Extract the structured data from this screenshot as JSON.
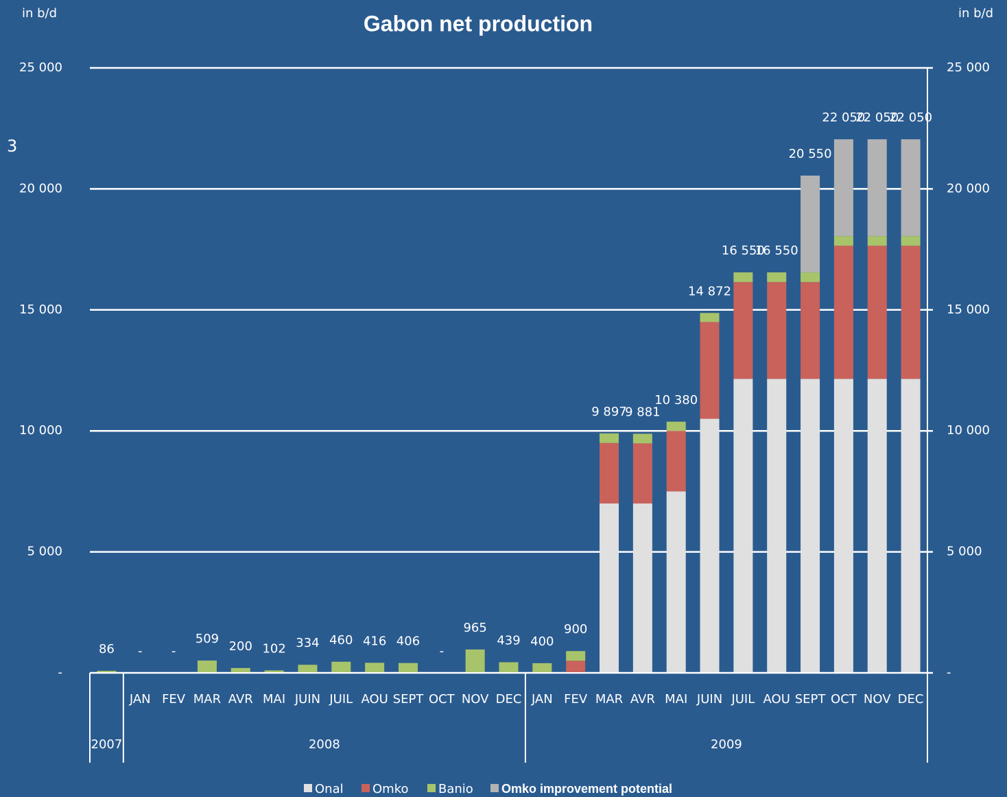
{
  "page_number": "3",
  "chart_data": {
    "type": "stacked_bar",
    "title": "Gabon net production",
    "y_label": "in b/d",
    "y2_label": "in b/d",
    "categories": [
      null,
      "JAN",
      "FEV",
      "MAR",
      "AVR",
      "MAI",
      "JUIN",
      "JUIL",
      "AOU",
      "SEPT",
      "OCT",
      "NOV",
      "DEC",
      "JAN",
      "FEV",
      "MAR",
      "AVR",
      "MAI",
      "JUIN",
      "JUIL",
      "AOU",
      "SEPT",
      "OCT",
      "NOV",
      "DEC"
    ],
    "years": [
      "2007",
      "2008",
      "2009"
    ],
    "series": [
      {
        "name": "Onal",
        "color": "#e0e0e0",
        "values": [
          0,
          0,
          0,
          0,
          0,
          0,
          0,
          0,
          0,
          0,
          0,
          0,
          0,
          0,
          0,
          7000,
          7000,
          7500,
          10500,
          12150,
          12150,
          12150,
          12150,
          12150,
          12150
        ]
      },
      {
        "name": "Omko",
        "color": "#c9625a",
        "values": [
          0,
          0,
          0,
          0,
          0,
          0,
          0,
          0,
          0,
          0,
          0,
          0,
          0,
          0,
          500,
          2500,
          2484,
          2500,
          4000,
          4000,
          4000,
          4000,
          5500,
          5500,
          5500
        ]
      },
      {
        "name": "Banio",
        "color": "#a8c46a",
        "values": [
          86,
          0,
          0,
          509,
          200,
          102,
          334,
          460,
          416,
          406,
          0,
          965,
          439,
          400,
          400,
          397,
          397,
          380,
          372,
          400,
          400,
          400,
          400,
          400,
          400
        ]
      },
      {
        "name": "Omko improvement potential",
        "color": "#b3b3b3",
        "values": [
          0,
          0,
          0,
          0,
          0,
          0,
          0,
          0,
          0,
          0,
          0,
          0,
          0,
          0,
          0,
          0,
          0,
          0,
          0,
          0,
          0,
          4000,
          4000,
          4000,
          4000
        ]
      }
    ],
    "totals": [
      86,
      0,
      0,
      509,
      200,
      102,
      334,
      460,
      416,
      406,
      0,
      965,
      439,
      400,
      900,
      9897,
      9881,
      10380,
      14872,
      16550,
      16550,
      20550,
      22050,
      22050,
      22050
    ],
    "total_labels": [
      "86",
      "-",
      "-",
      "509",
      "200",
      "102",
      "334",
      "460",
      "416",
      "406",
      "-",
      "965",
      "439",
      "400",
      "900",
      "9 897",
      "9 881",
      "10 380",
      "14 872",
      "16 550",
      "16 550",
      "20 550",
      "22 050",
      "22 050",
      "22 050"
    ],
    "ylim": [
      0,
      25000
    ],
    "yticks": [
      {
        "value": 0,
        "label": "-"
      },
      {
        "value": 5000,
        "label": "5 000"
      },
      {
        "value": 10000,
        "label": "10 000"
      },
      {
        "value": 15000,
        "label": "15 000"
      },
      {
        "value": 20000,
        "label": "20 000"
      },
      {
        "value": 25000,
        "label": "25 000"
      }
    ],
    "y2lim": [
      0,
      25000
    ],
    "y2ticks": [
      {
        "value": 0,
        "label": "-"
      },
      {
        "value": 5000,
        "label": "5 000"
      },
      {
        "value": 10000,
        "label": "10 000"
      },
      {
        "value": 15000,
        "label": "15 000"
      },
      {
        "value": 20000,
        "label": "20 000"
      },
      {
        "value": 25000,
        "label": "25 000"
      }
    ],
    "grid": true,
    "legend": "bottom"
  }
}
